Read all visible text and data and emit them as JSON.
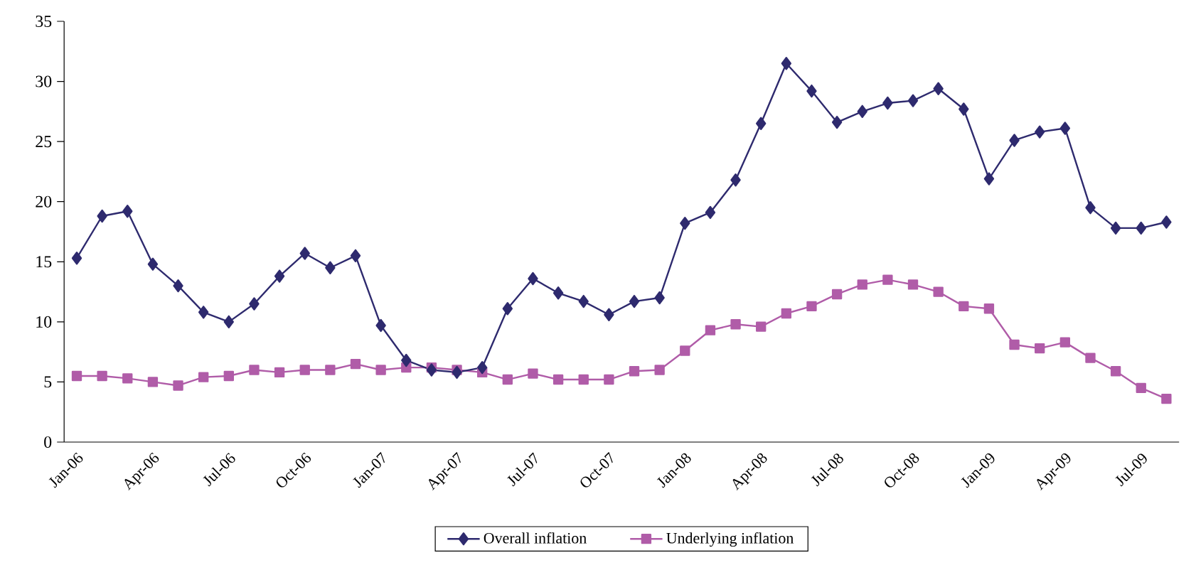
{
  "chart_data": {
    "type": "line",
    "categories": [
      "Jan-06",
      null,
      null,
      "Apr-06",
      null,
      null,
      "Jul-06",
      null,
      null,
      "Oct-06",
      null,
      null,
      "Jan-07",
      null,
      null,
      "Apr-07",
      null,
      null,
      "Jul-07",
      null,
      null,
      "Oct-07",
      null,
      null,
      "Jan-08",
      null,
      null,
      "Apr-08",
      null,
      null,
      "Jul-08",
      null,
      null,
      "Oct-08",
      null,
      null,
      "Jan-09",
      null,
      null,
      "Apr-09",
      null,
      null,
      "Jul-09",
      null
    ],
    "series": [
      {
        "name": "Overall inflation",
        "color": "#2e2a6e",
        "marker": "diamond",
        "values": [
          15.3,
          18.8,
          19.2,
          14.8,
          13.0,
          10.8,
          10.0,
          11.5,
          13.8,
          15.7,
          14.5,
          15.5,
          9.7,
          6.8,
          6.0,
          5.8,
          6.2,
          11.1,
          13.6,
          12.4,
          11.7,
          10.6,
          11.7,
          12.0,
          18.2,
          19.1,
          21.8,
          26.5,
          31.5,
          29.2,
          26.6,
          27.5,
          28.2,
          28.4,
          29.4,
          27.7,
          21.9,
          25.1,
          25.8,
          26.1,
          19.5,
          17.8,
          17.8,
          18.3
        ]
      },
      {
        "name": "Underlying inflation",
        "color": "#b05ca8",
        "marker": "square",
        "values": [
          5.5,
          5.5,
          5.3,
          5.0,
          4.7,
          5.4,
          5.5,
          6.0,
          5.8,
          6.0,
          6.0,
          6.5,
          6.0,
          6.2,
          6.2,
          6.0,
          5.8,
          5.2,
          5.7,
          5.2,
          5.2,
          5.2,
          5.9,
          6.0,
          7.6,
          9.3,
          9.8,
          9.6,
          10.7,
          11.3,
          12.3,
          13.1,
          13.5,
          13.1,
          12.5,
          11.3,
          11.1,
          8.1,
          7.8,
          8.3,
          7.0,
          5.9,
          4.5,
          3.6
        ]
      }
    ],
    "ylim": [
      0,
      35
    ],
    "yticks": [
      0,
      5,
      10,
      15,
      20,
      25,
      30,
      35
    ],
    "grid": false,
    "legend": "bottom",
    "line_style": "solid"
  }
}
